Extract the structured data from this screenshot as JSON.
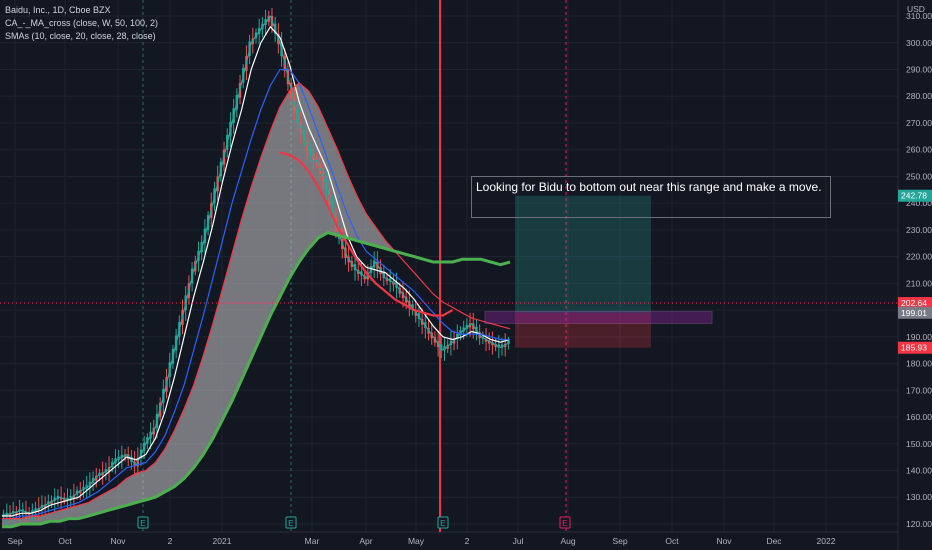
{
  "legend": {
    "symbol": "Baidu, Inc., 1D, Cboe BZX",
    "indicator1": "CA_-_MA_cross (close, W, 50, 100, 2)",
    "indicator2": "SMAs (10, close, 20, close, 28, close)"
  },
  "annotation_text": "Looking for Bidu to bottom out near this range and make a move.",
  "currency": "USD",
  "chart_data": {
    "type": "line",
    "ylim": [
      117,
      316
    ],
    "yticks": [
      120,
      130,
      140,
      150,
      160,
      170,
      180,
      190,
      200,
      210,
      220,
      230,
      240,
      250,
      260,
      270,
      280,
      290,
      300,
      310
    ],
    "x_labels": [
      "Sep",
      "Oct",
      "Nov",
      "2",
      "2021",
      "Mar",
      "Apr",
      "May",
      "2",
      "Jul",
      "Aug",
      "Sep",
      "Oct",
      "Nov",
      "Dec",
      "2022"
    ],
    "earnings_markers": [
      "E",
      "E",
      "E",
      "E"
    ],
    "price_tags": [
      {
        "value": 242.78,
        "label": "242.78",
        "color": "#26a69a"
      },
      {
        "value": 202.64,
        "label": "202.64",
        "color": "#f23645"
      },
      {
        "value": 199.01,
        "label": "199.01",
        "color": "#787b86"
      },
      {
        "value": 185.93,
        "label": "185.93",
        "color": "#f23645"
      }
    ],
    "position_tool": {
      "target": 242.78,
      "entry": 199.01,
      "stop": 185.93
    },
    "series": [
      {
        "color": "#26a69a",
        "values": [
          123,
          124,
          125,
          124,
          126,
          128,
          130,
          129,
          132,
          134,
          138,
          140,
          144,
          146,
          142,
          150,
          156,
          170,
          185,
          200,
          215,
          225,
          240,
          255,
          270,
          285,
          300,
          305,
          310,
          300,
          285,
          270,
          260,
          255,
          245,
          230,
          220,
          215,
          212,
          218,
          212,
          210,
          205,
          200,
          195,
          190,
          185,
          188,
          192,
          195,
          190,
          188,
          186,
          188
        ]
      },
      {
        "color": "#ffffff",
        "values": [
          123,
          123,
          124,
          124,
          125,
          127,
          128,
          129,
          130,
          133,
          136,
          139,
          142,
          145,
          144,
          146,
          152,
          162,
          175,
          190,
          205,
          218,
          232,
          248,
          262,
          275,
          290,
          300,
          306,
          302,
          292,
          278,
          268,
          260,
          252,
          240,
          228,
          220,
          216,
          215,
          214,
          211,
          208,
          204,
          199,
          194,
          190,
          189,
          190,
          192,
          191,
          189,
          188,
          189
        ]
      },
      {
        "color": "#2962ff",
        "values": [
          122,
          122,
          123,
          123,
          124,
          125,
          126,
          127,
          128,
          130,
          132,
          135,
          138,
          141,
          142,
          143,
          147,
          153,
          162,
          172,
          185,
          198,
          212,
          226,
          240,
          252,
          264,
          275,
          284,
          290,
          290,
          285,
          276,
          266,
          256,
          246,
          236,
          228,
          222,
          219,
          216,
          213,
          210,
          207,
          203,
          199,
          195,
          192,
          191,
          191,
          191,
          190,
          189,
          189
        ]
      },
      {
        "color": "#f23645",
        "values": [
          122,
          122,
          122,
          123,
          123,
          124,
          125,
          126,
          127,
          128,
          130,
          132,
          134,
          137,
          139,
          140,
          143,
          148,
          155,
          163,
          172,
          183,
          195,
          208,
          221,
          234,
          246,
          257,
          267,
          276,
          282,
          285,
          282,
          276,
          268,
          260,
          251,
          243,
          236,
          231,
          226,
          222,
          218,
          214,
          210,
          206,
          203,
          201,
          199,
          197,
          196,
          195,
          194,
          193
        ]
      },
      {
        "color": "#f23645",
        "width": 2.2,
        "values": [
          null,
          null,
          null,
          null,
          null,
          null,
          null,
          null,
          null,
          null,
          null,
          null,
          null,
          null,
          null,
          null,
          null,
          null,
          null,
          null,
          null,
          null,
          null,
          null,
          null,
          null,
          null,
          null,
          null,
          259,
          258,
          256,
          252,
          246,
          239,
          231,
          225,
          219,
          214,
          210,
          207,
          204,
          202,
          200,
          199,
          198,
          198,
          200
        ]
      },
      {
        "color": "#4caf50",
        "width": 3,
        "values": [
          119,
          119,
          120,
          120,
          120,
          121,
          121,
          122,
          122,
          123,
          124,
          125,
          126,
          127,
          128,
          129,
          130,
          132,
          134,
          137,
          141,
          146,
          152,
          159,
          166,
          174,
          182,
          190,
          198,
          205,
          212,
          218,
          223,
          227,
          229,
          228,
          227,
          226,
          225,
          224,
          223,
          222,
          221,
          220,
          219,
          218,
          218,
          218,
          219,
          219,
          219,
          218,
          217,
          218
        ]
      }
    ]
  }
}
